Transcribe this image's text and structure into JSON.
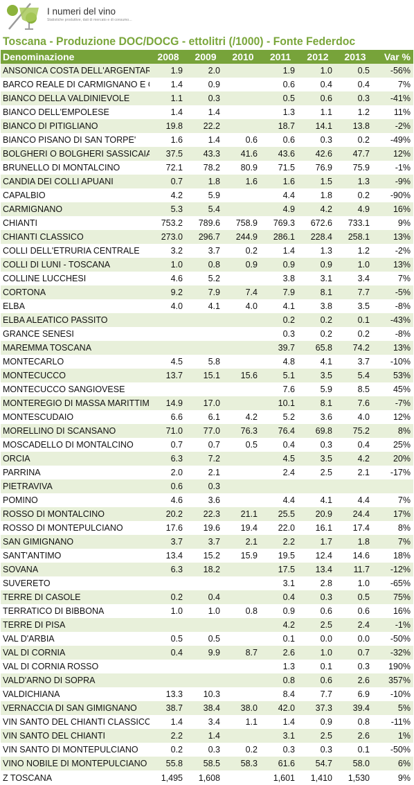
{
  "brand": {
    "title": "I numeri del vino",
    "tagline": "Statistiche produttive, dati di mercato e di consumo...",
    "accent_color": "#77a33a",
    "logo_icon": "wine-glass-percent-logo"
  },
  "page_title": "Toscana - Produzione DOC/DOCG - ettolitri (/1000) - Fonte Federdoc",
  "table": {
    "headers": [
      "Denominazione",
      "2008",
      "2009",
      "2010",
      "2011",
      "2012",
      "2013",
      "Var %"
    ],
    "rows": [
      [
        "ANSONICA COSTA DELL'ARGENTARIO",
        "1.9",
        "2.0",
        "",
        "1.9",
        "1.0",
        "0.5",
        "-56%"
      ],
      [
        "BARCO REALE DI CARMIGNANO E CARMIGNANO",
        "1.4",
        "0.9",
        "",
        "0.6",
        "0.4",
        "0.4",
        "7%"
      ],
      [
        "BIANCO DELLA VALDINIEVOLE",
        "1.1",
        "0.3",
        "",
        "0.5",
        "0.6",
        "0.3",
        "-41%"
      ],
      [
        "BIANCO DELL'EMPOLESE",
        "1.4",
        "1.4",
        "",
        "1.3",
        "1.1",
        "1.2",
        "11%"
      ],
      [
        "BIANCO DI PITIGLIANO",
        "19.8",
        "22.2",
        "",
        "18.7",
        "14.1",
        "13.8",
        "-2%"
      ],
      [
        "BIANCO PISANO DI SAN TORPE'",
        "1.6",
        "1.4",
        "0.6",
        "0.6",
        "0.3",
        "0.2",
        "-49%"
      ],
      [
        "BOLGHERI O BOLGHERI SASSICAIA",
        "37.5",
        "43.3",
        "41.6",
        "43.6",
        "42.6",
        "47.7",
        "12%"
      ],
      [
        "BRUNELLO DI MONTALCINO",
        "72.1",
        "78.2",
        "80.9",
        "71.5",
        "76.9",
        "75.9",
        "-1%"
      ],
      [
        "CANDIA DEI COLLI APUANI",
        "0.7",
        "1.8",
        "1.6",
        "1.6",
        "1.5",
        "1.3",
        "-9%"
      ],
      [
        "CAPALBIO",
        "4.2",
        "5.9",
        "",
        "4.4",
        "1.8",
        "0.2",
        "-90%"
      ],
      [
        "CARMIGNANO",
        "5.3",
        "5.4",
        "",
        "4.9",
        "4.2",
        "4.9",
        "16%"
      ],
      [
        "CHIANTI",
        "753.2",
        "789.6",
        "758.9",
        "769.3",
        "672.6",
        "733.1",
        "9%"
      ],
      [
        "CHIANTI CLASSICO",
        "273.0",
        "296.7",
        "244.9",
        "286.1",
        "228.4",
        "258.1",
        "13%"
      ],
      [
        "COLLI DELL'ETRURIA CENTRALE",
        "3.2",
        "3.7",
        "0.2",
        "1.4",
        "1.3",
        "1.2",
        "-2%"
      ],
      [
        "COLLI DI LUNI - TOSCANA",
        "1.0",
        "0.8",
        "0.9",
        "0.9",
        "0.9",
        "1.0",
        "13%"
      ],
      [
        "COLLINE LUCCHESI",
        "4.6",
        "5.2",
        "",
        "3.8",
        "3.1",
        "3.4",
        "7%"
      ],
      [
        "CORTONA",
        "9.2",
        "7.9",
        "7.4",
        "7.9",
        "8.1",
        "7.7",
        "-5%"
      ],
      [
        "ELBA",
        "4.0",
        "4.1",
        "4.0",
        "4.1",
        "3.8",
        "3.5",
        "-8%"
      ],
      [
        "ELBA ALEATICO PASSITO",
        "",
        "",
        "",
        "0.2",
        "0.2",
        "0.1",
        "-43%"
      ],
      [
        "GRANCE SENESI",
        "",
        "",
        "",
        "0.3",
        "0.2",
        "0.2",
        "-8%"
      ],
      [
        "MAREMMA TOSCANA",
        "",
        "",
        "",
        "39.7",
        "65.8",
        "74.2",
        "13%"
      ],
      [
        "MONTECARLO",
        "4.5",
        "5.8",
        "",
        "4.8",
        "4.1",
        "3.7",
        "-10%"
      ],
      [
        "MONTECUCCO",
        "13.7",
        "15.1",
        "15.6",
        "5.1",
        "3.5",
        "5.4",
        "53%"
      ],
      [
        "MONTECUCCO SANGIOVESE",
        "",
        "",
        "",
        "7.6",
        "5.9",
        "8.5",
        "45%"
      ],
      [
        "MONTEREGIO DI MASSA MARITTIMA",
        "14.9",
        "17.0",
        "",
        "10.1",
        "8.1",
        "7.6",
        "-7%"
      ],
      [
        "MONTESCUDAIO",
        "6.6",
        "6.1",
        "4.2",
        "5.2",
        "3.6",
        "4.0",
        "12%"
      ],
      [
        "MORELLINO DI SCANSANO",
        "71.0",
        "77.0",
        "76.3",
        "76.4",
        "69.8",
        "75.2",
        "8%"
      ],
      [
        "MOSCADELLO DI MONTALCINO",
        "0.7",
        "0.7",
        "0.5",
        "0.4",
        "0.3",
        "0.4",
        "25%"
      ],
      [
        "ORCIA",
        "6.3",
        "7.2",
        "",
        "4.5",
        "3.5",
        "4.2",
        "20%"
      ],
      [
        "PARRINA",
        "2.0",
        "2.1",
        "",
        "2.4",
        "2.5",
        "2.1",
        "-17%"
      ],
      [
        "PIETRAVIVA",
        "0.6",
        "0.3",
        "",
        "",
        "",
        "",
        ""
      ],
      [
        "POMINO",
        "4.6",
        "3.6",
        "",
        "4.4",
        "4.1",
        "4.4",
        "7%"
      ],
      [
        "ROSSO DI MONTALCINO",
        "20.2",
        "22.3",
        "21.1",
        "25.5",
        "20.9",
        "24.4",
        "17%"
      ],
      [
        "ROSSO DI MONTEPULCIANO",
        "17.6",
        "19.6",
        "19.4",
        "22.0",
        "16.1",
        "17.4",
        "8%"
      ],
      [
        "SAN GIMIGNANO",
        "3.7",
        "3.7",
        "2.1",
        "2.2",
        "1.7",
        "1.8",
        "7%"
      ],
      [
        "SANT'ANTIMO",
        "13.4",
        "15.2",
        "15.9",
        "19.5",
        "12.4",
        "14.6",
        "18%"
      ],
      [
        "SOVANA",
        "6.3",
        "18.2",
        "",
        "17.5",
        "13.4",
        "11.7",
        "-12%"
      ],
      [
        "SUVERETO",
        "",
        "",
        "",
        "3.1",
        "2.8",
        "1.0",
        "-65%"
      ],
      [
        "TERRE DI CASOLE",
        "0.2",
        "0.4",
        "",
        "0.4",
        "0.3",
        "0.5",
        "75%"
      ],
      [
        "TERRATICO DI BIBBONA",
        "1.0",
        "1.0",
        "0.8",
        "0.9",
        "0.6",
        "0.6",
        "16%"
      ],
      [
        "TERRE DI PISA",
        "",
        "",
        "",
        "4.2",
        "2.5",
        "2.4",
        "-1%"
      ],
      [
        "VAL D'ARBIA",
        "0.5",
        "0.5",
        "",
        "0.1",
        "0.0",
        "0.0",
        "-50%"
      ],
      [
        "VAL DI CORNIA",
        "0.4",
        "9.9",
        "8.7",
        "2.6",
        "1.0",
        "0.7",
        "-32%"
      ],
      [
        "VAL DI CORNIA ROSSO",
        "",
        "",
        "",
        "1.3",
        "0.1",
        "0.3",
        "190%"
      ],
      [
        "VALD'ARNO DI SOPRA",
        "",
        "",
        "",
        "0.8",
        "0.6",
        "2.6",
        "357%"
      ],
      [
        "VALDICHIANA",
        "13.3",
        "10.3",
        "",
        "8.4",
        "7.7",
        "6.9",
        "-10%"
      ],
      [
        "VERNACCIA DI SAN GIMIGNANO",
        "38.7",
        "38.4",
        "38.0",
        "42.0",
        "37.3",
        "39.4",
        "5%"
      ],
      [
        "VIN SANTO DEL CHIANTI CLASSICO",
        "1.4",
        "3.4",
        "1.1",
        "1.4",
        "0.9",
        "0.8",
        "-11%"
      ],
      [
        "VIN SANTO DEL CHIANTI",
        "2.2",
        "1.4",
        "",
        "3.1",
        "2.5",
        "2.6",
        "1%"
      ],
      [
        "VIN SANTO DI MONTEPULCIANO",
        "0.2",
        "0.3",
        "0.2",
        "0.3",
        "0.3",
        "0.1",
        "-50%"
      ],
      [
        "VINO NOBILE DI MONTEPULCIANO",
        "55.8",
        "58.5",
        "58.3",
        "61.6",
        "54.7",
        "58.0",
        "6%"
      ],
      [
        "Z TOSCANA",
        "1,495",
        "1,608",
        "",
        "1,601",
        "1,410",
        "1,530",
        "9%"
      ]
    ]
  }
}
